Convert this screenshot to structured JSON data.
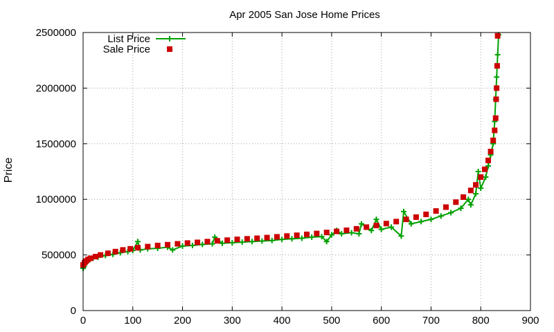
{
  "chart_data": {
    "type": "scatter",
    "title": "Apr 2005 San Jose Home Prices",
    "xlabel": "",
    "ylabel": "Price",
    "xlim": [
      0,
      900
    ],
    "ylim": [
      0,
      2500000
    ],
    "x_ticks": [
      "0",
      "100",
      "200",
      "300",
      "400",
      "500",
      "600",
      "700",
      "800",
      "900"
    ],
    "y_ticks": [
      "0",
      "500000",
      "1000000",
      "1500000",
      "2000000",
      "2500000"
    ],
    "grid": true,
    "legend_position": "top-left",
    "series": [
      {
        "name": "List Price",
        "style": "linespoints",
        "marker": "plus",
        "color": "#00a000",
        "points": [
          [
            0,
            380000
          ],
          [
            2,
            395000
          ],
          [
            4,
            420000
          ],
          [
            8,
            440000
          ],
          [
            12,
            455000
          ],
          [
            20,
            470000
          ],
          [
            30,
            480000
          ],
          [
            45,
            495000
          ],
          [
            60,
            505000
          ],
          [
            75,
            520000
          ],
          [
            90,
            530000
          ],
          [
            100,
            540000
          ],
          [
            110,
            620000
          ],
          [
            115,
            545000
          ],
          [
            130,
            555000
          ],
          [
            150,
            560000
          ],
          [
            170,
            570000
          ],
          [
            180,
            545000
          ],
          [
            200,
            580000
          ],
          [
            220,
            585000
          ],
          [
            240,
            595000
          ],
          [
            260,
            600000
          ],
          [
            265,
            660000
          ],
          [
            280,
            605000
          ],
          [
            300,
            610000
          ],
          [
            320,
            615000
          ],
          [
            340,
            620000
          ],
          [
            360,
            625000
          ],
          [
            380,
            630000
          ],
          [
            400,
            640000
          ],
          [
            420,
            645000
          ],
          [
            440,
            650000
          ],
          [
            460,
            660000
          ],
          [
            480,
            665000
          ],
          [
            490,
            620000
          ],
          [
            500,
            680000
          ],
          [
            510,
            720000
          ],
          [
            520,
            690000
          ],
          [
            540,
            700000
          ],
          [
            555,
            690000
          ],
          [
            560,
            780000
          ],
          [
            580,
            720000
          ],
          [
            590,
            820000
          ],
          [
            600,
            730000
          ],
          [
            620,
            750000
          ],
          [
            640,
            670000
          ],
          [
            645,
            890000
          ],
          [
            660,
            780000
          ],
          [
            680,
            800000
          ],
          [
            700,
            820000
          ],
          [
            720,
            850000
          ],
          [
            740,
            880000
          ],
          [
            760,
            920000
          ],
          [
            775,
            1000000
          ],
          [
            780,
            950000
          ],
          [
            790,
            1050000
          ],
          [
            795,
            1250000
          ],
          [
            800,
            1100000
          ],
          [
            810,
            1200000
          ],
          [
            815,
            1300000
          ],
          [
            820,
            1400000
          ],
          [
            825,
            1500000
          ],
          [
            828,
            1700000
          ],
          [
            830,
            1900000
          ],
          [
            832,
            2100000
          ],
          [
            834,
            2300000
          ],
          [
            836,
            2480000
          ]
        ]
      },
      {
        "name": "Sale Price",
        "style": "points",
        "marker": "square",
        "color": "#cc0000",
        "points": [
          [
            0,
            410000
          ],
          [
            3,
            430000
          ],
          [
            6,
            445000
          ],
          [
            10,
            460000
          ],
          [
            15,
            470000
          ],
          [
            25,
            485000
          ],
          [
            35,
            500000
          ],
          [
            50,
            515000
          ],
          [
            65,
            530000
          ],
          [
            80,
            545000
          ],
          [
            95,
            555000
          ],
          [
            110,
            565000
          ],
          [
            130,
            575000
          ],
          [
            150,
            585000
          ],
          [
            170,
            592000
          ],
          [
            190,
            600000
          ],
          [
            210,
            607000
          ],
          [
            230,
            613000
          ],
          [
            250,
            620000
          ],
          [
            270,
            627000
          ],
          [
            290,
            633000
          ],
          [
            310,
            640000
          ],
          [
            330,
            645000
          ],
          [
            350,
            650000
          ],
          [
            370,
            656000
          ],
          [
            390,
            663000
          ],
          [
            410,
            670000
          ],
          [
            430,
            677000
          ],
          [
            450,
            685000
          ],
          [
            470,
            693000
          ],
          [
            490,
            702000
          ],
          [
            510,
            712000
          ],
          [
            530,
            722000
          ],
          [
            550,
            735000
          ],
          [
            570,
            750000
          ],
          [
            590,
            765000
          ],
          [
            610,
            782000
          ],
          [
            630,
            800000
          ],
          [
            650,
            820000
          ],
          [
            670,
            840000
          ],
          [
            690,
            865000
          ],
          [
            710,
            895000
          ],
          [
            730,
            930000
          ],
          [
            750,
            975000
          ],
          [
            765,
            1020000
          ],
          [
            780,
            1080000
          ],
          [
            790,
            1130000
          ],
          [
            800,
            1200000
          ],
          [
            808,
            1270000
          ],
          [
            815,
            1350000
          ],
          [
            820,
            1430000
          ],
          [
            825,
            1530000
          ],
          [
            828,
            1620000
          ],
          [
            830,
            1730000
          ],
          [
            831,
            1900000
          ],
          [
            832,
            2000000
          ],
          [
            833,
            2200000
          ],
          [
            834,
            2470000
          ]
        ]
      }
    ]
  }
}
